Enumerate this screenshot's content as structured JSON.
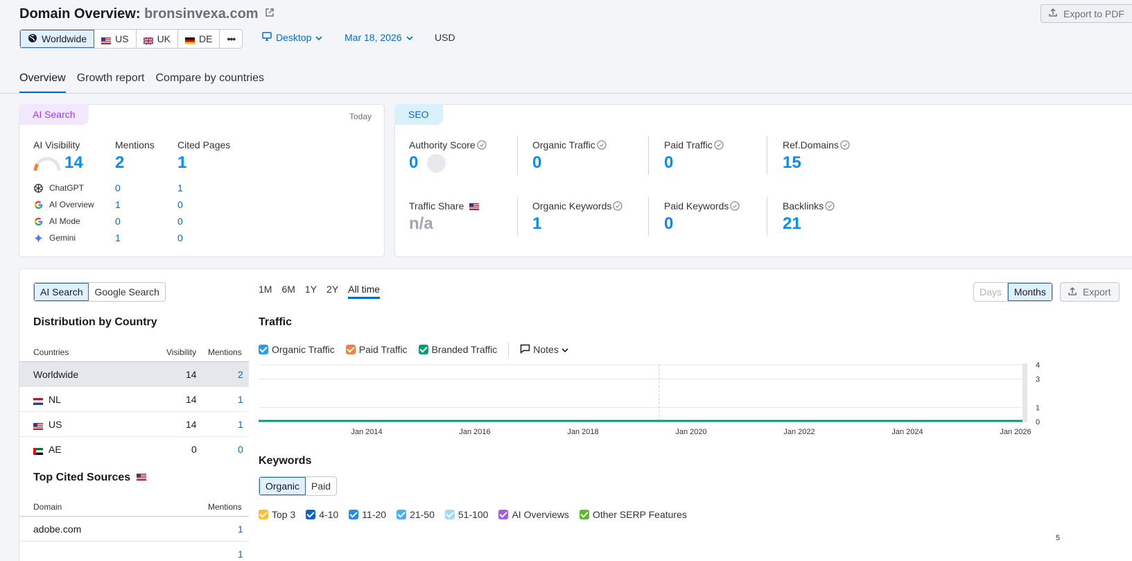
{
  "header": {
    "title_prefix": "Domain Overview:",
    "domain": "bronsinvexa.com",
    "export_pdf": "Export to PDF",
    "databases": [
      {
        "label": "Worldwide",
        "active": true
      },
      {
        "label": "US"
      },
      {
        "label": "UK"
      },
      {
        "label": "DE"
      }
    ],
    "more": "•••",
    "device": "Desktop",
    "date": "Mar 18, 2026",
    "currency": "USD"
  },
  "tabs": [
    "Overview",
    "Growth report",
    "Compare by countries"
  ],
  "ai_card": {
    "badge": "AI Search",
    "today": "Today",
    "cols": {
      "visibility": "AI Visibility",
      "mentions": "Mentions",
      "cited": "Cited Pages"
    },
    "visibility": "14",
    "mentions": "2",
    "cited": "1",
    "sources": [
      {
        "name": "ChatGPT",
        "mentions": "0",
        "cited": "1",
        "icon": "chatgpt-icon"
      },
      {
        "name": "AI Overview",
        "mentions": "1",
        "cited": "0",
        "icon": "google-icon"
      },
      {
        "name": "AI Mode",
        "mentions": "0",
        "cited": "0",
        "icon": "google-icon"
      },
      {
        "name": "Gemini",
        "mentions": "1",
        "cited": "0",
        "icon": "gemini-icon"
      }
    ]
  },
  "seo_card": {
    "badge": "SEO",
    "authority_label": "Authority Score",
    "authority": "0",
    "organic_traffic_label": "Organic Traffic",
    "organic_traffic": "0",
    "paid_traffic_label": "Paid Traffic",
    "paid_traffic": "0",
    "ref_domains_label": "Ref.Domains",
    "ref_domains": "15",
    "traffic_share_label": "Traffic Share",
    "traffic_share": "n/a",
    "organic_keywords_label": "Organic Keywords",
    "organic_keywords": "1",
    "paid_keywords_label": "Paid Keywords",
    "paid_keywords": "0",
    "backlinks_label": "Backlinks",
    "backlinks": "21"
  },
  "left_panel": {
    "toggle": [
      "AI Search",
      "Google Search"
    ],
    "distribution_title": "Distribution by Country",
    "dist_headers": [
      "Countries",
      "Visibility",
      "Mentions"
    ],
    "countries": [
      {
        "name": "Worldwide",
        "visibility": "14",
        "mentions": "2"
      },
      {
        "name": "NL",
        "visibility": "14",
        "mentions": "1"
      },
      {
        "name": "US",
        "visibility": "14",
        "mentions": "1"
      },
      {
        "name": "AE",
        "visibility": "0",
        "mentions": "0"
      }
    ],
    "cited_title": "Top Cited Sources",
    "cited_headers": [
      "Domain",
      "Mentions"
    ],
    "cited_rows": [
      {
        "domain": "adobe.com",
        "mentions": "1"
      }
    ],
    "cited_partial_mentions": "1"
  },
  "range_tabs": [
    "1M",
    "6M",
    "1Y",
    "2Y",
    "All time"
  ],
  "days_months": [
    "Days",
    "Months"
  ],
  "export": "Export",
  "traffic_title": "Traffic",
  "traffic_legend": [
    {
      "label": "Organic Traffic",
      "color": "#2d9cf0"
    },
    {
      "label": "Paid Traffic",
      "color": "#f6803a"
    },
    {
      "label": "Branded Traffic",
      "color": "#0a9a78"
    }
  ],
  "notes_label": "Notes",
  "keywords_title": "Keywords",
  "keywords_toggle": [
    "Organic",
    "Paid"
  ],
  "keywords_legend": [
    {
      "label": "Top 3",
      "color": "#ffc02d"
    },
    {
      "label": "4-10",
      "color": "#0b63c7"
    },
    {
      "label": "11-20",
      "color": "#1d8ef0"
    },
    {
      "label": "21-50",
      "color": "#45b1f4"
    },
    {
      "label": "51-100",
      "color": "#a7d8fb"
    },
    {
      "label": "AI Overviews",
      "color": "#a45be6"
    },
    {
      "label": "Other SERP Features",
      "color": "#5cb82c"
    }
  ],
  "keywords_y_top": "5",
  "chart_data": {
    "type": "area",
    "title": "Traffic",
    "x_ticks": [
      "Jan 2014",
      "Jan 2016",
      "Jan 2018",
      "Jan 2020",
      "Jan 2022",
      "Jan 2024",
      "Jan 2026"
    ],
    "y_ticks": [
      "4",
      "3",
      "1",
      "0"
    ],
    "ylim": [
      0,
      4
    ],
    "series": [
      {
        "name": "Organic Traffic",
        "values": [
          0,
          0,
          0,
          0,
          0,
          0,
          0
        ]
      },
      {
        "name": "Paid Traffic",
        "values": [
          0,
          0,
          0,
          0,
          0,
          0,
          0
        ]
      },
      {
        "name": "Branded Traffic",
        "values": [
          0,
          0,
          0,
          0,
          0,
          0,
          0
        ]
      }
    ]
  }
}
